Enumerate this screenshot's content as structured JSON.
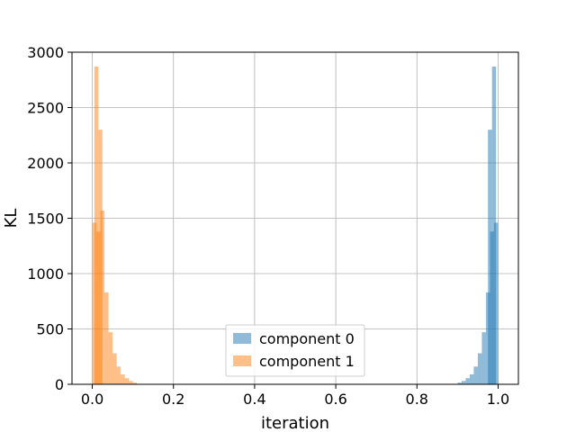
{
  "chart_data": {
    "type": "bar",
    "subtype": "histogram",
    "xlabel": "iteration",
    "ylabel": "KL",
    "xlim": [
      -0.05,
      1.05
    ],
    "ylim": [
      0,
      3000
    ],
    "xticks": [
      "0.0",
      "0.2",
      "0.4",
      "0.6",
      "0.8",
      "1.0"
    ],
    "yticks": [
      "0",
      "500",
      "1000",
      "1500",
      "2000",
      "2500",
      "3000"
    ],
    "grid": true,
    "legend_position": "bottom-center",
    "bin_width": 0.01,
    "series": [
      {
        "name": "component 0",
        "color": "#1f77b4",
        "opacity": 0.5,
        "bins": [
          [
            0.9,
            0.91,
            15
          ],
          [
            0.91,
            0.92,
            30
          ],
          [
            0.92,
            0.93,
            55
          ],
          [
            0.93,
            0.94,
            90
          ],
          [
            0.94,
            0.95,
            160
          ],
          [
            0.95,
            0.96,
            280
          ],
          [
            0.96,
            0.97,
            470
          ],
          [
            0.97,
            0.98,
            830
          ],
          [
            0.98,
            0.99,
            1380
          ],
          [
            0.99,
            1.0,
            1460
          ],
          [
            0.975,
            0.985,
            2300
          ],
          [
            0.985,
            0.995,
            2870
          ]
        ]
      },
      {
        "name": "component 1",
        "color": "#ff7f0e",
        "opacity": 0.5,
        "bins": [
          [
            0.0,
            0.01,
            1460
          ],
          [
            0.01,
            0.02,
            1380
          ],
          [
            0.005,
            0.015,
            2870
          ],
          [
            0.015,
            0.025,
            2300
          ],
          [
            0.02,
            0.03,
            1570
          ],
          [
            0.03,
            0.04,
            830
          ],
          [
            0.04,
            0.05,
            470
          ],
          [
            0.05,
            0.06,
            280
          ],
          [
            0.06,
            0.07,
            160
          ],
          [
            0.07,
            0.08,
            90
          ],
          [
            0.08,
            0.09,
            55
          ],
          [
            0.09,
            0.1,
            30
          ],
          [
            0.1,
            0.11,
            15
          ]
        ]
      }
    ]
  }
}
